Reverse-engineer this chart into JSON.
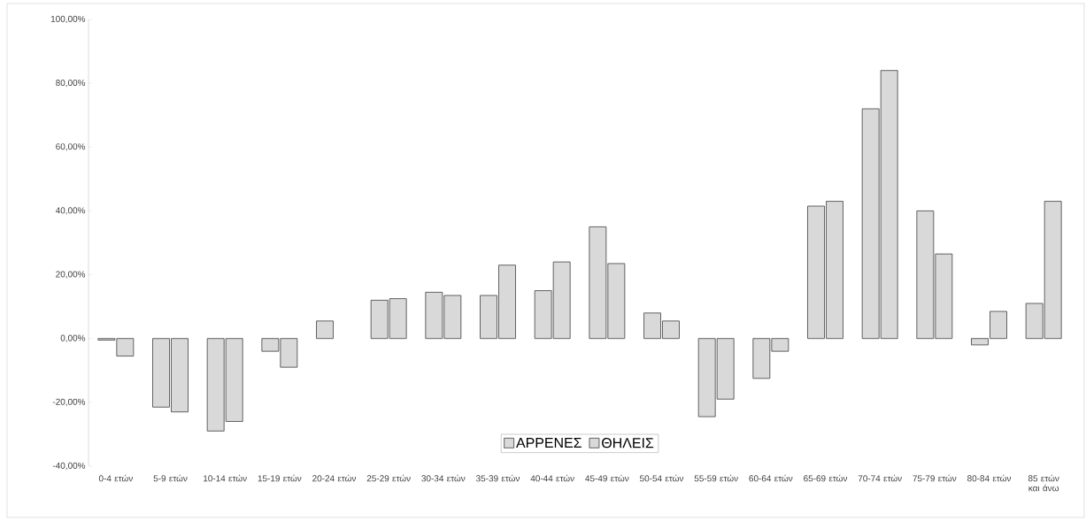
{
  "chart_data": {
    "type": "bar",
    "categories": [
      "0-4 ετών",
      "5-9 ετών",
      "10-14 ετών",
      "15-19 ετών",
      "20-24 ετών",
      "25-29 ετών",
      "30-34 ετών",
      "35-39 ετών",
      "40-44 ετών",
      "45-49 ετών",
      "50-54 ετών",
      "55-59 ετών",
      "60-64 ετών",
      "65-69 ετών",
      "70-74 ετών",
      "75-79 ετών",
      "80-84 ετών",
      "85 ετών και άνω"
    ],
    "series": [
      {
        "name": "ΑΡΡΕΝΕΣ",
        "color": "#d9d9d9",
        "values": [
          -0.5,
          -21.5,
          -29,
          -4,
          5.5,
          12,
          14.5,
          13.5,
          15,
          35,
          8,
          -24.5,
          -12.5,
          41.5,
          72,
          40,
          -2,
          11
        ]
      },
      {
        "name": "ΘΗΛΕΙΣ",
        "color": "#d9d9d9",
        "values": [
          -5.5,
          -23,
          -26,
          -9,
          null,
          12.5,
          13.5,
          23,
          24,
          23.5,
          5.5,
          -19,
          -4,
          43,
          84,
          26.5,
          8.5,
          43
        ]
      }
    ],
    "ylim": [
      -40,
      100
    ],
    "yticks": [
      {
        "value": -40,
        "label": "-40,00%"
      },
      {
        "value": -20,
        "label": "-20,00%"
      },
      {
        "value": 0,
        "label": "0,00%"
      },
      {
        "value": 20,
        "label": "20,00%"
      },
      {
        "value": 40,
        "label": "40,00%"
      },
      {
        "value": 60,
        "label": "60,00%"
      },
      {
        "value": 80,
        "label": "80,00%"
      },
      {
        "value": 100,
        "label": "100,00%"
      }
    ],
    "legend": "bottom"
  }
}
